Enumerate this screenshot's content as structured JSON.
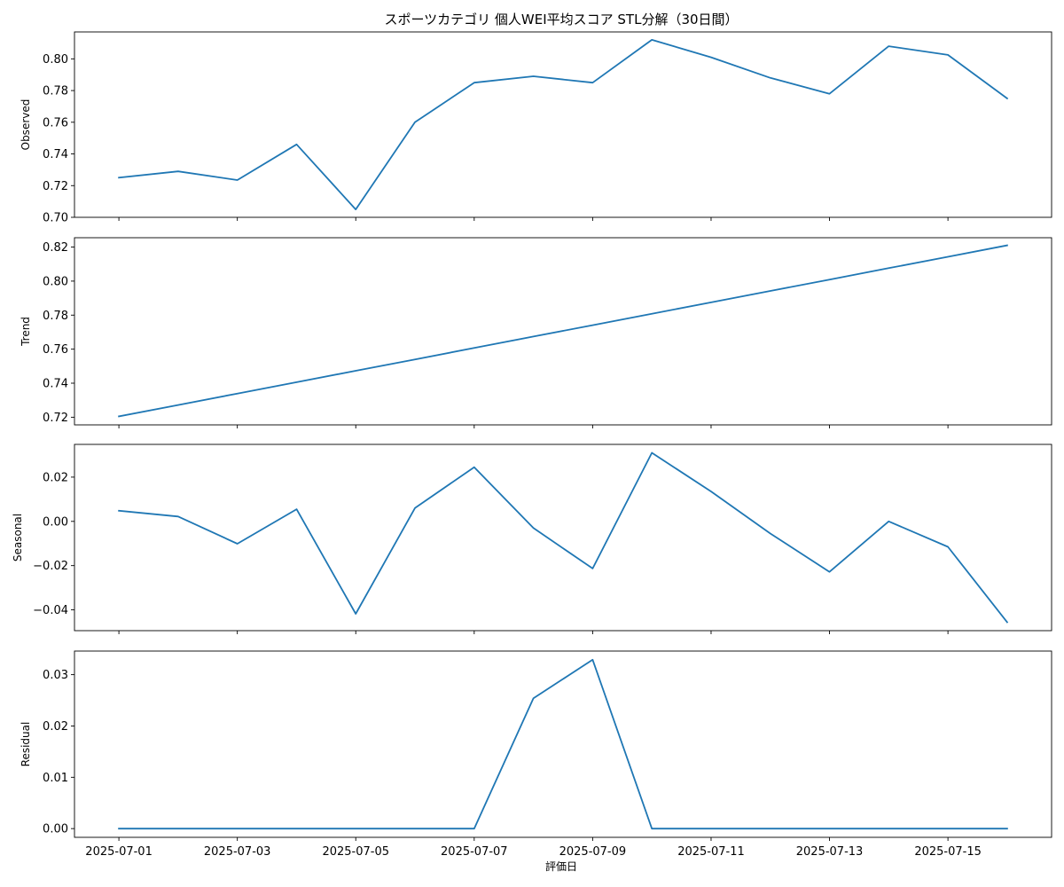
{
  "figure": {
    "title": "スポーツカテゴリ 個人WEI平均スコア STL分解（30日間）",
    "xlabel": "評価日"
  },
  "chart_data": [
    {
      "type": "line",
      "ylabel": "Observed",
      "x": [
        "2025-07-01",
        "2025-07-02",
        "2025-07-03",
        "2025-07-04",
        "2025-07-05",
        "2025-07-06",
        "2025-07-07",
        "2025-07-08",
        "2025-07-09",
        "2025-07-10",
        "2025-07-11",
        "2025-07-12",
        "2025-07-13",
        "2025-07-14",
        "2025-07-15",
        "2025-07-16"
      ],
      "values": [
        0.725,
        0.729,
        0.7235,
        0.746,
        0.705,
        0.76,
        0.785,
        0.789,
        0.785,
        0.812,
        0.801,
        0.788,
        0.778,
        0.808,
        0.8025,
        0.775
      ],
      "ylim": [
        0.7,
        0.817
      ],
      "yticks": [
        0.7,
        0.72,
        0.74,
        0.76,
        0.78,
        0.8
      ],
      "ytick_labels": [
        "0.70",
        "0.72",
        "0.74",
        "0.76",
        "0.78",
        "0.80"
      ],
      "color": "#1f77b4"
    },
    {
      "type": "line",
      "ylabel": "Trend",
      "x": [
        "2025-07-01",
        "2025-07-02",
        "2025-07-03",
        "2025-07-04",
        "2025-07-05",
        "2025-07-06",
        "2025-07-07",
        "2025-07-08",
        "2025-07-09",
        "2025-07-10",
        "2025-07-11",
        "2025-07-12",
        "2025-07-13",
        "2025-07-14",
        "2025-07-15",
        "2025-07-16"
      ],
      "values": [
        0.7205,
        0.7272,
        0.7339,
        0.7406,
        0.7473,
        0.754,
        0.7607,
        0.7674,
        0.7741,
        0.7808,
        0.7875,
        0.7942,
        0.8009,
        0.8076,
        0.8143,
        0.821
      ],
      "ylim": [
        0.7155,
        0.8255
      ],
      "yticks": [
        0.72,
        0.74,
        0.76,
        0.78,
        0.8,
        0.82
      ],
      "ytick_labels": [
        "0.72",
        "0.74",
        "0.76",
        "0.78",
        "0.80",
        "0.82"
      ],
      "color": "#1f77b4"
    },
    {
      "type": "line",
      "ylabel": "Seasonal",
      "x": [
        "2025-07-01",
        "2025-07-02",
        "2025-07-03",
        "2025-07-04",
        "2025-07-05",
        "2025-07-06",
        "2025-07-07",
        "2025-07-08",
        "2025-07-09",
        "2025-07-10",
        "2025-07-11",
        "2025-07-12",
        "2025-07-13",
        "2025-07-14",
        "2025-07-15",
        "2025-07-16"
      ],
      "values": [
        0.0048,
        0.0022,
        -0.0101,
        0.0055,
        -0.0418,
        0.006,
        0.0245,
        -0.003,
        -0.0213,
        0.031,
        0.0135,
        -0.0055,
        -0.0228,
        0.0,
        -0.0115,
        -0.0456
      ],
      "ylim": [
        -0.0494,
        0.0348
      ],
      "yticks": [
        -0.04,
        -0.02,
        0.0,
        0.02
      ],
      "ytick_labels": [
        "−0.04",
        "−0.02",
        "0.00",
        "0.02"
      ],
      "color": "#1f77b4"
    },
    {
      "type": "line",
      "ylabel": "Residual",
      "x": [
        "2025-07-01",
        "2025-07-02",
        "2025-07-03",
        "2025-07-04",
        "2025-07-05",
        "2025-07-06",
        "2025-07-07",
        "2025-07-08",
        "2025-07-09",
        "2025-07-10",
        "2025-07-11",
        "2025-07-12",
        "2025-07-13",
        "2025-07-14",
        "2025-07-15",
        "2025-07-16"
      ],
      "values": [
        0,
        0,
        0,
        0,
        0,
        0,
        0,
        0.0254,
        0.0329,
        0,
        0,
        0,
        0,
        0,
        0,
        0
      ],
      "ylim": [
        -0.0017,
        0.0346
      ],
      "yticks": [
        0.0,
        0.01,
        0.02,
        0.03
      ],
      "ytick_labels": [
        "0.00",
        "0.01",
        "0.02",
        "0.03"
      ],
      "color": "#1f77b4"
    }
  ],
  "xaxis": {
    "xlim": [
      "2025-06-30T06:00",
      "2025-07-16T18:00"
    ],
    "ticks": [
      "2025-07-01",
      "2025-07-03",
      "2025-07-05",
      "2025-07-07",
      "2025-07-09",
      "2025-07-11",
      "2025-07-13",
      "2025-07-15"
    ],
    "tick_labels": [
      "2025-07-01",
      "2025-07-03",
      "2025-07-05",
      "2025-07-07",
      "2025-07-09",
      "2025-07-11",
      "2025-07-13",
      "2025-07-15"
    ]
  }
}
